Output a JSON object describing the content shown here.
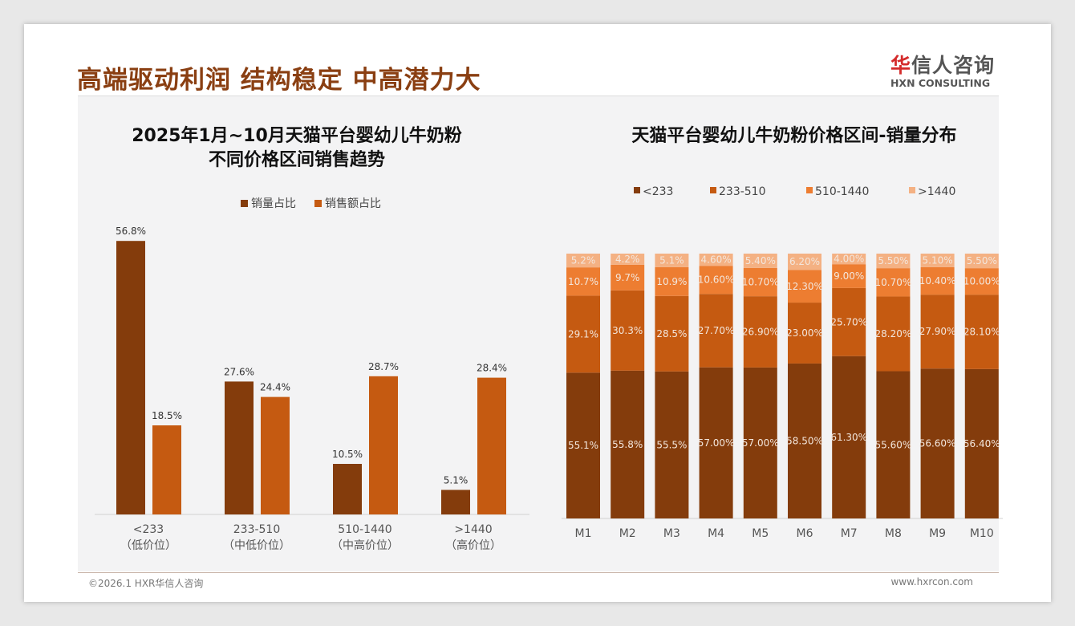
{
  "header": {
    "title": "高端驱动利润 结构稳定 中高潜力大",
    "logo_cn_accent": "华",
    "logo_cn_rest": "信人咨询",
    "logo_en": "HXN CONSULTING"
  },
  "footer": {
    "copyright": "©2026.1 HXR华信人咨询",
    "url": "www.hxrcon.com"
  },
  "chart_data": [
    {
      "type": "bar",
      "title_line1": "2025年1月~10月天猫平台婴幼儿牛奶粉",
      "title_line2": "不同价格区间销售趋势",
      "categories": [
        "<233",
        "233-510",
        "510-1440",
        ">1440"
      ],
      "category_sub": [
        "（低价位）",
        "（中低价位）",
        "（中高价位）",
        "（高价位）"
      ],
      "series": [
        {
          "name": "销量占比",
          "color": "#843C0C",
          "values": [
            56.8,
            27.6,
            10.5,
            5.1
          ]
        },
        {
          "name": "销售额占比",
          "color": "#C55A11",
          "values": [
            18.5,
            24.4,
            28.7,
            28.4
          ]
        }
      ],
      "unit": "%",
      "legend": "top-center"
    },
    {
      "type": "bar",
      "stacked": true,
      "title": "天猫平台婴幼儿牛奶粉价格区间-销量分布",
      "categories": [
        "M1",
        "M2",
        "M3",
        "M4",
        "M5",
        "M6",
        "M7",
        "M8",
        "M9",
        "M10"
      ],
      "series": [
        {
          "name": "<233",
          "color": "#843C0C",
          "values": [
            55.1,
            55.8,
            55.5,
            57.0,
            57.0,
            58.5,
            61.3,
            55.6,
            56.6,
            56.4
          ],
          "labels": [
            "55.1%",
            "55.8%",
            "55.5%",
            "57.00%",
            "57.00%",
            "58.50%",
            "61.30%",
            "55.60%",
            "56.60%",
            "56.40%"
          ]
        },
        {
          "name": "233-510",
          "color": "#C55A11",
          "values": [
            29.1,
            30.3,
            28.5,
            27.7,
            26.9,
            23.0,
            25.7,
            28.2,
            27.9,
            28.1
          ],
          "labels": [
            "29.1%",
            "30.3%",
            "28.5%",
            "27.70%",
            "26.90%",
            "23.00%",
            "25.70%",
            "28.20%",
            "27.90%",
            "28.10%"
          ]
        },
        {
          "name": "510-1440",
          "color": "#ED7D31",
          "values": [
            10.7,
            9.7,
            10.9,
            10.6,
            10.7,
            12.3,
            9.0,
            10.7,
            10.4,
            10.0
          ],
          "labels": [
            "10.7%",
            "9.7%",
            "10.9%",
            "10.60%",
            "10.70%",
            "12.30%",
            "9.00%",
            "10.70%",
            "10.40%",
            "10.00%"
          ]
        },
        {
          "name": ">1440",
          "color": "#F4B183",
          "values": [
            5.2,
            4.2,
            5.1,
            4.6,
            5.4,
            6.2,
            4.0,
            5.5,
            5.1,
            5.5
          ],
          "labels": [
            "5.2%",
            "4.2%",
            "5.1%",
            "4.60%",
            "5.40%",
            "6.20%",
            "4.00%",
            "5.50%",
            "5.10%",
            "5.50%"
          ]
        }
      ],
      "ylim": [
        0,
        100
      ],
      "legend": "top-center"
    }
  ]
}
